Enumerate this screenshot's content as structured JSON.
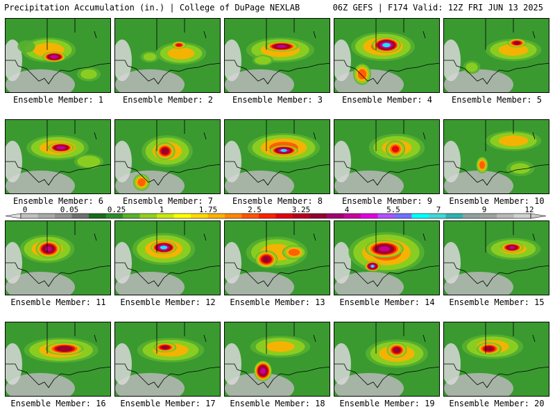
{
  "header": {
    "left": "Precipitation Accumulation (in.) | College of DuPage NEXLAB",
    "right": "06Z GEFS | F174 Valid: 12Z FRI JUN 13 2025"
  },
  "member_label_prefix": "Ensemble Member: ",
  "members": [
    {
      "n": 1,
      "blobs": [
        [
          62,
          45,
          48,
          22,
          2.2
        ],
        [
          70,
          55,
          18,
          8,
          6.5
        ],
        [
          30,
          40,
          20,
          14,
          0.8
        ],
        [
          120,
          80,
          25,
          15,
          1.0
        ]
      ]
    },
    {
      "n": 2,
      "blobs": [
        [
          95,
          50,
          45,
          20,
          2.0
        ],
        [
          92,
          38,
          12,
          6,
          3.8
        ],
        [
          50,
          55,
          20,
          12,
          1.0
        ]
      ]
    },
    {
      "n": 3,
      "blobs": [
        [
          80,
          45,
          60,
          22,
          2.2
        ],
        [
          82,
          40,
          26,
          8,
          5.8
        ],
        [
          55,
          60,
          20,
          10,
          1.5
        ]
      ]
    },
    {
      "n": 4,
      "blobs": [
        [
          70,
          40,
          55,
          25,
          2.5
        ],
        [
          75,
          38,
          22,
          12,
          7.5
        ],
        [
          40,
          80,
          15,
          18,
          3.0
        ]
      ]
    },
    {
      "n": 5,
      "blobs": [
        [
          100,
          45,
          50,
          20,
          2.0
        ],
        [
          105,
          35,
          15,
          7,
          4.5
        ],
        [
          40,
          70,
          18,
          14,
          1.0
        ]
      ]
    },
    {
      "n": 6,
      "blobs": [
        [
          75,
          40,
          55,
          22,
          2.2
        ],
        [
          80,
          40,
          20,
          8,
          6.5
        ],
        [
          120,
          60,
          28,
          14,
          1.5
        ]
      ]
    },
    {
      "n": 7,
      "blobs": [
        [
          75,
          45,
          45,
          28,
          2.2
        ],
        [
          72,
          45,
          16,
          14,
          4.5
        ],
        [
          38,
          90,
          14,
          14,
          3.0
        ]
      ]
    },
    {
      "n": 8,
      "blobs": [
        [
          85,
          40,
          62,
          25,
          2.6
        ],
        [
          85,
          44,
          22,
          8,
          7.0
        ]
      ]
    },
    {
      "n": 9,
      "blobs": [
        [
          90,
          40,
          50,
          25,
          2.0
        ],
        [
          88,
          42,
          16,
          14,
          3.5
        ]
      ]
    },
    {
      "n": 10,
      "blobs": [
        [
          100,
          30,
          50,
          18,
          2.0
        ],
        [
          55,
          65,
          10,
          14,
          3.0
        ],
        [
          110,
          70,
          30,
          16,
          1.0
        ]
      ]
    },
    {
      "n": 11,
      "blobs": [
        [
          60,
          40,
          48,
          25,
          2.2
        ],
        [
          62,
          40,
          20,
          14,
          5.5
        ]
      ]
    },
    {
      "n": 12,
      "blobs": [
        [
          70,
          40,
          55,
          28,
          2.3
        ],
        [
          70,
          38,
          20,
          10,
          7.5
        ]
      ]
    },
    {
      "n": 13,
      "blobs": [
        [
          75,
          45,
          55,
          28,
          2.0
        ],
        [
          60,
          55,
          18,
          14,
          4.5
        ],
        [
          100,
          45,
          20,
          12,
          3.0
        ]
      ]
    },
    {
      "n": 14,
      "blobs": [
        [
          75,
          45,
          65,
          35,
          2.6
        ],
        [
          72,
          40,
          30,
          14,
          5.8
        ],
        [
          55,
          65,
          12,
          8,
          7.0
        ]
      ]
    },
    {
      "n": 15,
      "blobs": [
        [
          100,
          40,
          50,
          20,
          1.8
        ],
        [
          98,
          38,
          18,
          8,
          5.5
        ]
      ]
    },
    {
      "n": 16,
      "blobs": [
        [
          80,
          40,
          65,
          22,
          2.3
        ],
        [
          85,
          38,
          30,
          10,
          5.0
        ]
      ]
    },
    {
      "n": 17,
      "blobs": [
        [
          80,
          40,
          60,
          22,
          2.0
        ],
        [
          72,
          36,
          18,
          8,
          4.5
        ]
      ]
    },
    {
      "n": 18,
      "blobs": [
        [
          80,
          35,
          55,
          20,
          1.8
        ],
        [
          55,
          70,
          14,
          16,
          6.0
        ]
      ]
    },
    {
      "n": 19,
      "blobs": [
        [
          90,
          45,
          55,
          25,
          2.2
        ],
        [
          90,
          40,
          16,
          12,
          4.5
        ]
      ]
    },
    {
      "n": 20,
      "blobs": [
        [
          70,
          35,
          55,
          22,
          2.0
        ],
        [
          65,
          38,
          20,
          10,
          4.5
        ]
      ]
    }
  ],
  "colorbar": {
    "ticks": [
      "0",
      "0.05",
      "0.25",
      "1",
      "1.75",
      "2.5",
      "3.25",
      "4",
      "5.5",
      "7",
      "9",
      "12"
    ],
    "colors": [
      "#c0c0c0",
      "#a8a8a8",
      "#909090",
      "#707070",
      "#1a6b1a",
      "#2e8a2e",
      "#58b030",
      "#90d020",
      "#c8e810",
      "#ffff00",
      "#ffd800",
      "#ffb000",
      "#ff8800",
      "#ff5500",
      "#ff2000",
      "#e00010",
      "#b80020",
      "#900030",
      "#a00070",
      "#c800a0",
      "#e000e0",
      "#b050ff",
      "#7070ff",
      "#00ffff",
      "#40d8d8",
      "#30b0b0",
      "#90a0a0",
      "#a0a0a0",
      "#b8b8b8",
      "#d0d0d0"
    ]
  }
}
